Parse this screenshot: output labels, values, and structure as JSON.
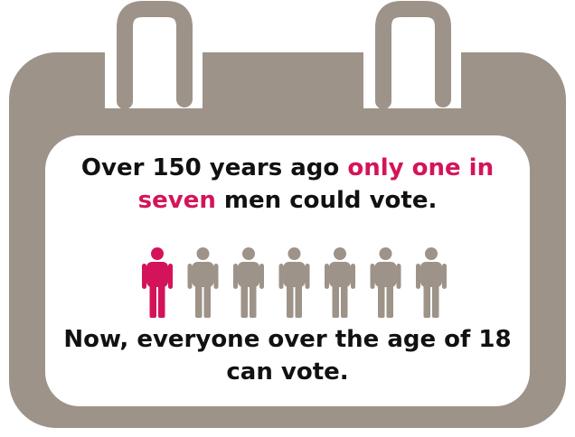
{
  "statement": {
    "part1": "Over 150 years ago ",
    "highlight": "only one in seven",
    "part2": " men could vote.",
    "conclusion": "Now, everyone over the age of 18 can vote."
  },
  "people": {
    "total": 7,
    "highlighted": 1
  },
  "colors": {
    "calendar": "#9d9389",
    "highlight": "#d4145a",
    "text": "#111111",
    "card": "#ffffff"
  },
  "icons": [
    "calendar-icon",
    "calendar-ring-icon",
    "person-icon"
  ]
}
